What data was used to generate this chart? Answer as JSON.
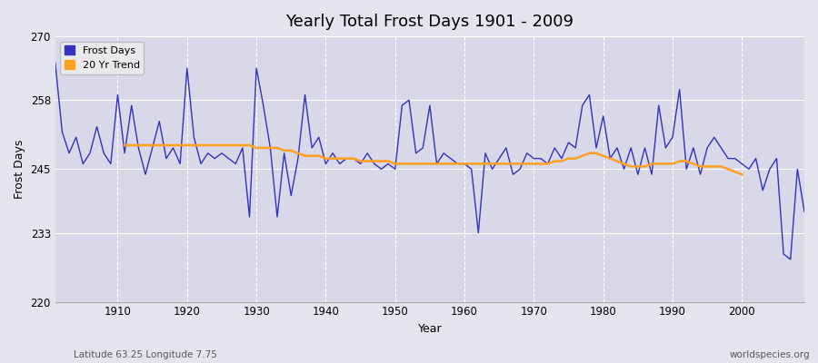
{
  "title": "Yearly Total Frost Days 1901 - 2009",
  "xlabel": "Year",
  "ylabel": "Frost Days",
  "ylim": [
    220,
    270
  ],
  "xlim": [
    1901,
    2009
  ],
  "yticks": [
    220,
    233,
    245,
    258,
    270
  ],
  "xticks": [
    1910,
    1920,
    1930,
    1940,
    1950,
    1960,
    1970,
    1980,
    1990,
    2000
  ],
  "frost_days_color": "#3333bb",
  "trend_color": "#ffa020",
  "bg_color": "#e4e4ee",
  "plot_bg_color": "#d8d8e8",
  "grid_color": "#ffffff",
  "legend_label_frost": "Frost Days",
  "legend_label_trend": "20 Yr Trend",
  "subtitle_left": "Latitude 63.25 Longitude 7.75",
  "subtitle_right": "worldspecies.org",
  "years": [
    1901,
    1902,
    1903,
    1904,
    1905,
    1906,
    1907,
    1908,
    1909,
    1910,
    1911,
    1912,
    1913,
    1914,
    1915,
    1916,
    1917,
    1918,
    1919,
    1920,
    1921,
    1922,
    1923,
    1924,
    1925,
    1926,
    1927,
    1928,
    1929,
    1930,
    1931,
    1932,
    1933,
    1934,
    1935,
    1936,
    1937,
    1938,
    1939,
    1940,
    1941,
    1942,
    1943,
    1944,
    1945,
    1946,
    1947,
    1948,
    1949,
    1950,
    1951,
    1952,
    1953,
    1954,
    1955,
    1956,
    1957,
    1958,
    1959,
    1960,
    1961,
    1962,
    1963,
    1964,
    1965,
    1966,
    1967,
    1968,
    1969,
    1970,
    1971,
    1972,
    1973,
    1974,
    1975,
    1976,
    1977,
    1978,
    1979,
    1980,
    1981,
    1982,
    1983,
    1984,
    1985,
    1986,
    1987,
    1988,
    1989,
    1990,
    1991,
    1992,
    1993,
    1994,
    1995,
    1996,
    1997,
    1998,
    1999,
    2000,
    2001,
    2002,
    2003,
    2004,
    2005,
    2006,
    2007,
    2008,
    2009
  ],
  "frost_values": [
    265,
    252,
    248,
    251,
    246,
    248,
    253,
    248,
    246,
    259,
    248,
    257,
    249,
    244,
    249,
    254,
    247,
    249,
    246,
    264,
    251,
    246,
    248,
    247,
    248,
    247,
    246,
    249,
    236,
    264,
    257,
    249,
    236,
    248,
    240,
    247,
    259,
    249,
    251,
    246,
    248,
    246,
    247,
    247,
    246,
    248,
    246,
    245,
    246,
    245,
    257,
    258,
    248,
    249,
    257,
    246,
    248,
    247,
    246,
    246,
    245,
    233,
    248,
    245,
    247,
    249,
    244,
    245,
    248,
    247,
    247,
    246,
    249,
    247,
    250,
    249,
    257,
    259,
    249,
    255,
    247,
    249,
    245,
    249,
    244,
    249,
    244,
    257,
    249,
    251,
    260,
    245,
    249,
    244,
    249,
    251,
    249,
    247,
    247,
    246,
    245,
    247,
    241,
    245,
    247,
    229,
    228,
    245,
    237
  ],
  "trend_values": [
    null,
    null,
    null,
    null,
    null,
    null,
    null,
    null,
    null,
    null,
    249.5,
    249.5,
    249.5,
    249.5,
    249.5,
    249.5,
    249.5,
    249.5,
    249.5,
    249.5,
    249.5,
    249.5,
    249.5,
    249.5,
    249.5,
    249.5,
    249.5,
    249.5,
    249.5,
    249.0,
    249.0,
    249.0,
    249.0,
    248.5,
    248.5,
    248.0,
    247.5,
    247.5,
    247.5,
    247.0,
    247.0,
    247.0,
    247.0,
    247.0,
    246.5,
    246.5,
    246.5,
    246.5,
    246.5,
    246.0,
    246.0,
    246.0,
    246.0,
    246.0,
    246.0,
    246.0,
    246.0,
    246.0,
    246.0,
    246.0,
    246.0,
    246.0,
    246.0,
    246.0,
    246.0,
    246.0,
    246.0,
    246.0,
    246.0,
    246.0,
    246.0,
    246.0,
    246.5,
    246.5,
    247.0,
    247.0,
    247.5,
    248.0,
    248.0,
    247.5,
    247.0,
    246.5,
    246.0,
    245.5,
    245.5,
    245.5,
    246.0,
    246.0,
    246.0,
    246.0,
    246.5,
    246.5,
    246.0,
    245.5,
    245.5,
    245.5,
    245.5,
    245.0,
    244.5,
    244.0,
    null,
    null,
    null,
    null,
    null,
    null,
    null,
    null,
    null
  ]
}
